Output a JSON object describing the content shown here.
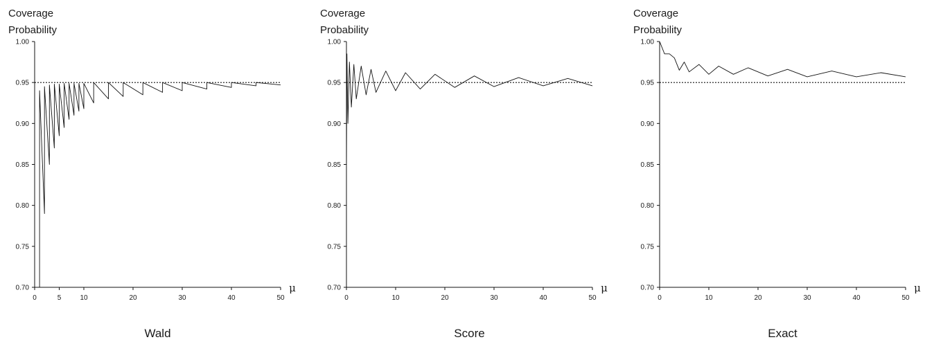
{
  "chart_data": [
    {
      "type": "line",
      "title": "Wald",
      "ylabel": "Coverage Probability",
      "xlabel": "μ",
      "xlim": [
        0,
        50
      ],
      "ylim": [
        0.7,
        1.0
      ],
      "xticks": [
        "0",
        "5",
        "10",
        "20",
        "30",
        "40",
        "50"
      ],
      "xtick_values": [
        0,
        5,
        10,
        20,
        30,
        40,
        50
      ],
      "yticks": [
        "0.70",
        "0.75",
        "0.80",
        "0.85",
        "0.90",
        "0.95",
        "1.00"
      ],
      "reference_line": 0.95,
      "series": [
        {
          "x": [
            0,
            1.0,
            1.0,
            2.0,
            2.0,
            3.0,
            3.0,
            4.0,
            4.0,
            5.0,
            5.0,
            6.0,
            6.0,
            7.0,
            7.0,
            8.0,
            8.0,
            9.0,
            9.0,
            10.0,
            10.0,
            12.0,
            12.0,
            15.0,
            15.0,
            18.0,
            18.0,
            22.0,
            22.0,
            26.0,
            26.0,
            30.0,
            30.0,
            35.0,
            35.0,
            40.0,
            40.0,
            45.0,
            45.0,
            50.0
          ],
          "y": [
            0.7,
            0.7,
            0.94,
            0.79,
            0.945,
            0.85,
            0.947,
            0.87,
            0.948,
            0.885,
            0.948,
            0.895,
            0.949,
            0.905,
            0.949,
            0.91,
            0.949,
            0.915,
            0.949,
            0.918,
            0.949,
            0.925,
            0.95,
            0.93,
            0.95,
            0.933,
            0.95,
            0.935,
            0.95,
            0.938,
            0.95,
            0.94,
            0.95,
            0.942,
            0.95,
            0.944,
            0.95,
            0.946,
            0.95,
            0.947
          ]
        }
      ]
    },
    {
      "type": "line",
      "title": "Score",
      "ylabel": "Coverage Probability",
      "xlabel": "μ",
      "xlim": [
        0,
        50
      ],
      "ylim": [
        0.7,
        1.0
      ],
      "xticks": [
        "0",
        "10",
        "20",
        "30",
        "40",
        "50"
      ],
      "xtick_values": [
        0,
        10,
        20,
        30,
        40,
        50
      ],
      "yticks": [
        "0.70",
        "0.75",
        "0.80",
        "0.85",
        "0.90",
        "0.95",
        "1.00"
      ],
      "reference_line": 0.95,
      "series": [
        {
          "x": [
            0,
            0.1,
            0.3,
            0.6,
            1.0,
            1.5,
            2.0,
            3.0,
            4.0,
            5.0,
            6.0,
            8.0,
            10.0,
            12.0,
            15.0,
            18.0,
            22.0,
            26.0,
            30.0,
            35.0,
            40.0,
            45.0,
            50.0
          ],
          "y": [
            0.84,
            0.985,
            0.9,
            0.975,
            0.92,
            0.972,
            0.93,
            0.97,
            0.935,
            0.966,
            0.938,
            0.964,
            0.94,
            0.962,
            0.942,
            0.96,
            0.944,
            0.958,
            0.945,
            0.956,
            0.946,
            0.955,
            0.946
          ]
        }
      ]
    },
    {
      "type": "line",
      "title": "Exact",
      "ylabel": "Coverage Probability",
      "xlabel": "μ",
      "xlim": [
        0,
        50
      ],
      "ylim": [
        0.7,
        1.0
      ],
      "xticks": [
        "0",
        "10",
        "20",
        "30",
        "40",
        "50"
      ],
      "xtick_values": [
        0,
        10,
        20,
        30,
        40,
        50
      ],
      "yticks": [
        "0.70",
        "0.75",
        "0.80",
        "0.85",
        "0.90",
        "0.95",
        "1.00"
      ],
      "reference_line": 0.95,
      "series": [
        {
          "x": [
            0,
            1.0,
            2.0,
            3.0,
            4.0,
            5.0,
            6.0,
            8.0,
            10.0,
            12.0,
            15.0,
            18.0,
            22.0,
            26.0,
            30.0,
            35.0,
            40.0,
            45.0,
            50.0
          ],
          "y": [
            1.0,
            0.985,
            0.985,
            0.98,
            0.965,
            0.975,
            0.963,
            0.972,
            0.96,
            0.97,
            0.96,
            0.968,
            0.958,
            0.966,
            0.957,
            0.964,
            0.957,
            0.962,
            0.957
          ]
        }
      ]
    }
  ]
}
